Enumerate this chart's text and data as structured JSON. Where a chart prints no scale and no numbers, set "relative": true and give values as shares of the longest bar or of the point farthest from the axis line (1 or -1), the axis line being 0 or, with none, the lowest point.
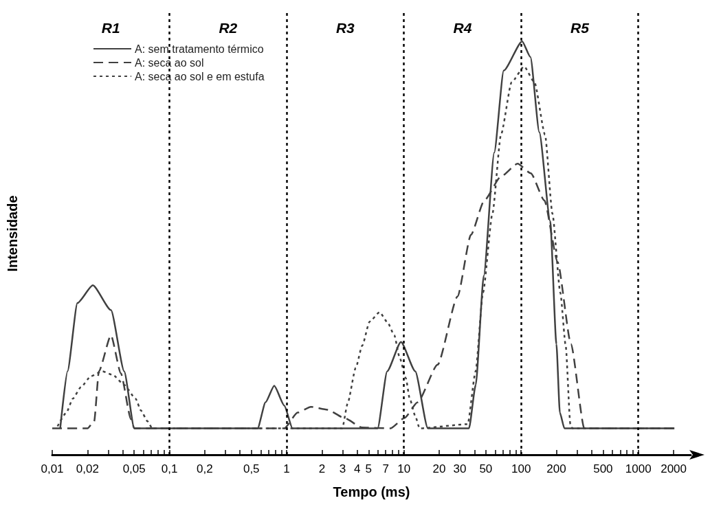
{
  "chart_data": {
    "type": "line",
    "relative": true,
    "xlabel": "Tempo (ms)",
    "ylabel": "Intensidade",
    "log": "x",
    "grid": false,
    "legend": "top left",
    "marker": "none",
    "xlim": [
      0.01,
      2800
    ],
    "xticks": [
      {
        "value": 0.01,
        "label": "0,01"
      },
      {
        "value": 0.02,
        "label": "0,02"
      },
      {
        "value": 0.03,
        "label": null
      },
      {
        "value": 0.04,
        "label": null
      },
      {
        "value": 0.05,
        "label": "0,05"
      },
      {
        "value": 0.06,
        "label": null
      },
      {
        "value": 0.07,
        "label": null
      },
      {
        "value": 0.08,
        "label": null
      },
      {
        "value": 0.09,
        "label": null
      },
      {
        "value": 0.1,
        "label": "0,1"
      },
      {
        "value": 0.2,
        "label": "0,2"
      },
      {
        "value": 0.3,
        "label": null
      },
      {
        "value": 0.4,
        "label": null
      },
      {
        "value": 0.5,
        "label": "0,5"
      },
      {
        "value": 0.6,
        "label": null
      },
      {
        "value": 0.7,
        "label": null
      },
      {
        "value": 0.8,
        "label": null
      },
      {
        "value": 0.9,
        "label": null
      },
      1,
      2,
      3,
      4,
      5,
      {
        "value": 6,
        "label": null
      },
      7,
      {
        "value": 8,
        "label": null
      },
      {
        "value": 9,
        "label": null
      },
      10,
      20,
      30,
      {
        "value": 40,
        "label": null
      },
      50,
      {
        "value": 60,
        "label": null
      },
      {
        "value": 70,
        "label": null
      },
      {
        "value": 80,
        "label": null
      },
      {
        "value": 90,
        "label": null
      },
      100,
      200,
      {
        "value": 300,
        "label": null
      },
      {
        "value": 400,
        "label": null
      },
      500,
      {
        "value": 600,
        "label": null
      },
      {
        "value": 700,
        "label": null
      },
      {
        "value": 800,
        "label": null
      },
      {
        "value": 900,
        "label": null
      },
      1000,
      2000
    ],
    "series": [
      {
        "name": "A: sem tratamento térmico",
        "color": "#404040",
        "line_style": "solid",
        "x": [
          0.0117,
          0.0135,
          0.0164,
          0.0222,
          0.0317,
          0.0411,
          0.0501,
          0.565,
          0.66,
          0.783,
          0.955,
          1.12,
          5.97,
          7.2,
          9.44,
          12.5,
          16,
          35.9,
          41,
          48,
          59,
          71,
          102,
          120,
          143,
          177,
          200,
          214,
          234,
          2028
        ],
        "values": [
          0.064,
          0.202,
          0.367,
          0.41,
          0.35,
          0.202,
          0.064,
          0.064,
          0.127,
          0.167,
          0.119,
          0.064,
          0.064,
          0.202,
          0.273,
          0.202,
          0.064,
          0.064,
          0.169,
          0.433,
          0.731,
          0.929,
          1,
          0.962,
          0.78,
          0.565,
          0.268,
          0.102,
          0.064,
          0.064
        ]
      },
      {
        "name": "A: seca ao sol",
        "color": "#404040",
        "line_style": "dashed",
        "x": [
          0.01,
          0.02,
          0.0228,
          0.025,
          0.0317,
          0.0385,
          0.0469,
          0.0501,
          0.955,
          1.24,
          1.61,
          2.23,
          3.1,
          4.4,
          7.7,
          10.1,
          13.1,
          19.4,
          28.7,
          37.3,
          48.5,
          67.3,
          93.3,
          121,
          158,
          205,
          266,
          346,
          2028
        ],
        "values": [
          0.064,
          0.064,
          0.081,
          0.202,
          0.289,
          0.197,
          0.086,
          0.064,
          0.064,
          0.102,
          0.116,
          0.109,
          0.089,
          0.066,
          0.064,
          0.089,
          0.127,
          0.218,
          0.383,
          0.532,
          0.615,
          0.673,
          0.704,
          0.681,
          0.615,
          0.466,
          0.268,
          0.064,
          0.064
        ]
      },
      {
        "name": "A: seca ao sol e em estufa",
        "color": "#404040",
        "line_style": "dotted",
        "x": [
          0.0111,
          0.0132,
          0.015,
          0.0176,
          0.0214,
          0.0267,
          0.033,
          0.0411,
          0.0514,
          0.0571,
          0.065,
          0.0713,
          2.98,
          3.31,
          3.88,
          4.41,
          5.1,
          6.21,
          7.26,
          8.28,
          9.2,
          10.4,
          11.2,
          12.6,
          13.6,
          35,
          40.9,
          47.3,
          56.9,
          67.3,
          83,
          106,
          130,
          160,
          185,
          216,
          240,
          263,
          274,
          2028
        ],
        "values": [
          0.069,
          0.102,
          0.136,
          0.164,
          0.19,
          0.202,
          0.193,
          0.169,
          0.136,
          0.107,
          0.081,
          0.064,
          0.064,
          0.124,
          0.21,
          0.264,
          0.322,
          0.345,
          0.32,
          0.289,
          0.235,
          0.185,
          0.136,
          0.091,
          0.064,
          0.074,
          0.202,
          0.392,
          0.583,
          0.774,
          0.901,
          0.939,
          0.901,
          0.774,
          0.583,
          0.392,
          0.264,
          0.074,
          0.064,
          0.064
        ]
      }
    ],
    "ref_lines": [
      {
        "axis": "x",
        "value": 0.1,
        "label": null,
        "color": "#000000",
        "line_style": "dotted"
      },
      {
        "axis": "x",
        "value": 1,
        "label": null,
        "color": "#000000",
        "line_style": "dotted"
      },
      {
        "axis": "x",
        "value": 10,
        "label": null,
        "color": "#000000",
        "line_style": "dotted"
      },
      {
        "axis": "x",
        "value": 100,
        "label": null,
        "color": "#000000",
        "line_style": "dotted"
      },
      {
        "axis": "x",
        "value": 1000,
        "label": null,
        "color": "#000000",
        "line_style": "dotted"
      }
    ],
    "annotations": [
      "R1",
      "R2",
      "R3",
      "R4",
      "R5"
    ]
  }
}
